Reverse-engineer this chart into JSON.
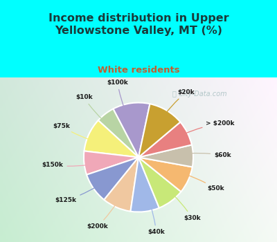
{
  "title": "Income distribution in Upper\nYellowstone Valley, MT (%)",
  "subtitle": "White residents",
  "watermark": "ⓘ City-Data.com",
  "labels": [
    "$100k",
    "$10k",
    "$75k",
    "$150k",
    "$125k",
    "$200k",
    "$40k",
    "$30k",
    "$50k",
    "$60k",
    "> $200k",
    "$20k"
  ],
  "sizes": [
    11.0,
    5.5,
    10.0,
    7.0,
    9.0,
    8.5,
    8.5,
    8.0,
    8.0,
    6.5,
    7.5,
    10.5
  ],
  "colors": [
    "#a898cc",
    "#b8d4a4",
    "#f5f07a",
    "#f0a8b8",
    "#8898d0",
    "#f0c8a0",
    "#a0b8e8",
    "#c8e878",
    "#f5b870",
    "#c8c0ac",
    "#e88080",
    "#c8a030"
  ],
  "background_cyan": "#00ffff",
  "title_color": "#1a3a3a",
  "subtitle_color": "#c06030",
  "label_color": "#1a1a1a",
  "startangle": 78
}
